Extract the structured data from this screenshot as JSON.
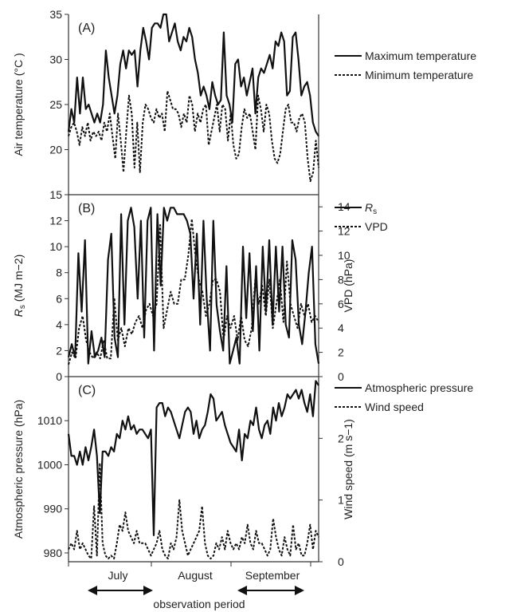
{
  "chart_data": [
    {
      "panel": "(A)",
      "type": "line",
      "ylabel": "Air temperature (°C )",
      "ylim": [
        15,
        35
      ],
      "yticks": [
        15,
        20,
        25,
        30,
        35
      ],
      "series": [
        {
          "name": "Maximum temperature",
          "style": "solid",
          "values": [
            22,
            24.5,
            23,
            28,
            24,
            28,
            24.5,
            25,
            24,
            23,
            24,
            23,
            25,
            31,
            28,
            26,
            24,
            26,
            29.5,
            31,
            29,
            31,
            30.5,
            31,
            27,
            31,
            33.5,
            32,
            30,
            33.5,
            34,
            34,
            33.5,
            35,
            35,
            32,
            33,
            34,
            32,
            31,
            32.5,
            32,
            33.5,
            32.5,
            30,
            28.5,
            26,
            27,
            26,
            24.5,
            27.5,
            26,
            25,
            25.5,
            33,
            26,
            25,
            23,
            29.5,
            30,
            27,
            28,
            26,
            27.5,
            29,
            24,
            28,
            29,
            28.5,
            29.5,
            30.5,
            29,
            32,
            31.5,
            33,
            32,
            26,
            26.5,
            32.5,
            33,
            30,
            26,
            27,
            27.5,
            26,
            23,
            22,
            21.5
          ]
        },
        {
          "name": "Minimum temperature",
          "style": "dashed",
          "values": [
            21.5,
            22.5,
            23,
            22,
            20.5,
            22.5,
            21.5,
            23,
            21,
            22,
            21.5,
            22,
            21,
            23,
            22,
            24,
            21.5,
            19,
            24,
            21,
            17.5,
            22,
            26,
            24,
            18,
            23,
            17.5,
            23,
            25,
            24.5,
            23.5,
            23,
            24.5,
            23.5,
            24,
            22,
            26.5,
            25.5,
            24.5,
            24.5,
            24,
            22.5,
            24,
            23,
            26,
            25,
            22,
            24,
            23,
            24.5,
            25,
            20.5,
            22,
            23.5,
            25,
            22,
            25,
            24.5,
            21,
            24,
            20.5,
            19,
            19.5,
            22.5,
            24.5,
            23.5,
            24,
            22,
            20,
            26,
            24.5,
            22,
            25,
            24,
            21,
            19,
            18.5,
            19.5,
            22,
            24.5,
            25,
            23,
            23,
            22,
            23.5,
            24,
            23,
            19,
            16.5,
            17.5,
            21,
            18
          ]
        }
      ]
    },
    {
      "panel": "(B)",
      "type": "line",
      "ylabel": "Rs (MJ m−2)",
      "y2label": "VPD (hPa)",
      "ylim": [
        0,
        14
      ],
      "yticks": [
        0,
        2,
        4,
        6,
        8,
        10,
        12
      ],
      "y2lim": [
        0,
        15
      ],
      "y2ticks": [
        0,
        2,
        4,
        6,
        8,
        10,
        12,
        14
      ],
      "series": [
        {
          "name": "Rs",
          "style": "solid",
          "axis": "left",
          "values": [
            1.5,
            2.5,
            1.5,
            9.5,
            5,
            10.5,
            1,
            3.5,
            1.5,
            2,
            3,
            1.5,
            9,
            11,
            3,
            1.5,
            12.5,
            4,
            12,
            13,
            11.5,
            6,
            12,
            3,
            12,
            13,
            2,
            12.5,
            7,
            13,
            12,
            13,
            13,
            12.5,
            12.5,
            12.5,
            12,
            11,
            6,
            11,
            4,
            12,
            6,
            2,
            12,
            5.5,
            3.5,
            2,
            8.5,
            1,
            2,
            3,
            1,
            10,
            4.5,
            9.5,
            3.5,
            8.5,
            2,
            10,
            5,
            10.5,
            4,
            10,
            5,
            10,
            4,
            3,
            10.5,
            9,
            4,
            2.5,
            5,
            8,
            10,
            2.5,
            1
          ]
        },
        {
          "name": "VPD",
          "style": "dashed",
          "axis": "right",
          "values": [
            1,
            2,
            1.5,
            4,
            5,
            3,
            2,
            1.5,
            2,
            1.5,
            3,
            1.5,
            1.5,
            6.5,
            3,
            4,
            2.5,
            4,
            3.5,
            4.5,
            5,
            4,
            5.5,
            6,
            5,
            6,
            12.5,
            4,
            5.5,
            7,
            6,
            6,
            8,
            8,
            10,
            13,
            10,
            8,
            7,
            5,
            6,
            8,
            8,
            7,
            3,
            5,
            4,
            5,
            3,
            5,
            3,
            2.5,
            4,
            8,
            6,
            7.5,
            5,
            8,
            4,
            6,
            8,
            4.5,
            9.5,
            6,
            5,
            4,
            6,
            5,
            6,
            4.5,
            5,
            4.5
          ]
        }
      ]
    },
    {
      "panel": "(C)",
      "type": "line",
      "ylabel": "Atmospheric pressure (hPa)",
      "y2label": "Wind speed (m s−1)",
      "ylim": [
        978,
        1020
      ],
      "yticks": [
        980,
        990,
        1000,
        1010
      ],
      "y2lim": [
        0,
        3
      ],
      "y2ticks": [
        0,
        1,
        2
      ],
      "xticks": [
        "July",
        "August",
        "September"
      ],
      "series": [
        {
          "name": "Atmospheric pressure",
          "style": "solid",
          "axis": "left",
          "values": [
            1007,
            1002,
            1002,
            1000,
            1003,
            1000,
            1004,
            1001,
            1004,
            1008,
            1002,
            989,
            1003,
            1003,
            1002,
            1004,
            1003,
            1007,
            1006,
            1010,
            1008,
            1011,
            1008,
            1009,
            1007,
            1008,
            1008,
            1007,
            1006,
            1008,
            984,
            1013,
            1014,
            1014,
            1011,
            1013,
            1012,
            1010,
            1008,
            1006,
            1009,
            1012,
            1013,
            1012,
            1007,
            1010,
            1006,
            1008,
            1009,
            1012,
            1016,
            1015,
            1010,
            1011,
            1012,
            1009,
            1007,
            1005,
            1004,
            1003,
            1008,
            1001,
            1007,
            1006,
            1010,
            1009,
            1013,
            1008,
            1006,
            1009,
            1010,
            1007,
            1013,
            1010,
            1014,
            1011,
            1013,
            1016,
            1015,
            1016,
            1017,
            1015,
            1017,
            1014,
            1012,
            1016,
            1011,
            1019,
            1018
          ]
        },
        {
          "name": "Wind speed",
          "style": "dashed",
          "axis": "right",
          "values": [
            0.2,
            0.3,
            0.2,
            0.5,
            0.2,
            0.3,
            0.2,
            0.1,
            0.05,
            0.9,
            0.1,
            1.6,
            0.3,
            0.1,
            0.05,
            0.1,
            0.05,
            0.3,
            0.6,
            0.5,
            0.8,
            0.5,
            0.4,
            0.3,
            0.5,
            0.3,
            0.3,
            0.3,
            0.2,
            0.1,
            0.2,
            0.3,
            0.5,
            0.2,
            0.1,
            0.05,
            0.3,
            0.2,
            0.4,
            1.0,
            0.5,
            0.3,
            0.1,
            0.2,
            0.3,
            0.4,
            0.5,
            0.9,
            0.3,
            0.1,
            0.05,
            0.1,
            0.3,
            0.2,
            0.4,
            0.2,
            0.5,
            0.3,
            0.2,
            0.3,
            0.2,
            0.4,
            0.3,
            0.6,
            0.3,
            0.2,
            0.5,
            0.3,
            0.3,
            0.2,
            0.1,
            0.2,
            0.7,
            0.4,
            0.2,
            0.1,
            0.4,
            0.2,
            0.1,
            0.6,
            0.2,
            0.3,
            0.1,
            0.1,
            0.3,
            0.6,
            0.2,
            0.5,
            0.4
          ]
        }
      ]
    }
  ],
  "footer": {
    "label": "observation period"
  }
}
